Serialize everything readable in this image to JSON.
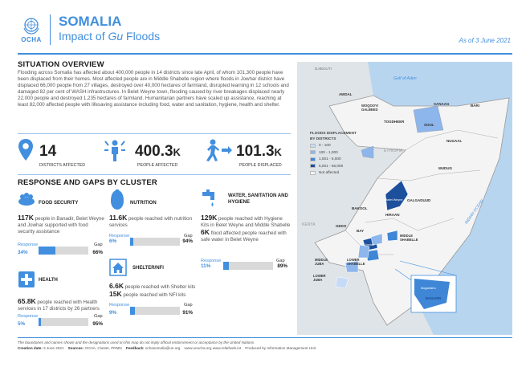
{
  "header": {
    "org": "OCHA",
    "title": "SOMALIA",
    "subtitle_prefix": "Impact of ",
    "subtitle_italic": "Gu",
    "subtitle_suffix": " Floods",
    "as_of": "As of 3 June 2021"
  },
  "overview": {
    "heading": "SITUATION OVERVIEW",
    "text": "Flooding across Somalia has affected about 400,000 people in 14 districts since late April, of whom 101,300 people have been displaced from their homes. Most affected people are in Middle Shabelle region where floods in Jowhar district have displaced 66,000 people from 27 villages, destroyed over 40,000 hectares of farmland, disrupted learning in 12 schools and damaged 82 per cent of WASH infrastructures. In Belet Weyne town, flooding caused by river breakages displaced nearly 22,000 people and destroyed 1,235 hectares of farmland. Humanitarian partners have scaled up assistance, reaching at least 82,000 affected people with lifesaving assistance including food, water and sanitation, hygiene, health and shelter."
  },
  "kpis": [
    {
      "icon": "location-pin-icon",
      "value": "14",
      "unit": "",
      "label": "DISTRICTS AFFECTED"
    },
    {
      "icon": "people-affected-icon",
      "value": "400.3",
      "unit": "K",
      "label": "PEOPLE AFFECTED"
    },
    {
      "icon": "people-displaced-icon",
      "value": "101.3",
      "unit": "K",
      "label": "PEOPLE DISPLACED"
    }
  ],
  "response": {
    "heading": "RESPONSE AND GAPS BY CLUSTER",
    "response_label": "Response",
    "gap_label": "Gap",
    "clusters": [
      {
        "key": "food",
        "title": "FOOD SECURITY",
        "num": "117K",
        "text": " people in Banadir, Belet Weyne and Jowhar supported with food security assistance",
        "response_pct": 34,
        "gap_pct": 66,
        "response_text": "34%",
        "gap_text": "66%"
      },
      {
        "key": "nutrition",
        "title": "NUTRITION",
        "num": "11.6K",
        "text": " people reached with nutrition services",
        "response_pct": 6,
        "gap_pct": 94,
        "response_text": "6%",
        "gap_text": "94%"
      },
      {
        "key": "wash",
        "title": "WATER, SANITATION AND HYGIENE",
        "num": "129K",
        "text": " people reached with Hygiene Kits in Belet Weyne and Middle Shabelle",
        "num2": "6K",
        "text2": " flood affected people reached with safe water in Belet Weyne",
        "response_pct": 11,
        "gap_pct": 89,
        "response_text": "11%",
        "gap_text": "89%"
      },
      {
        "key": "shelter",
        "title": "SHELTER/NFI",
        "num": "6.6K",
        "text": " people reached with Shelter kits",
        "num2": "15K",
        "text2": " people reached with NFI kits",
        "response_pct": 9,
        "gap_pct": 91,
        "response_text": "9%",
        "gap_text": "91%"
      },
      {
        "key": "health",
        "title": "HEALTH",
        "num": "65.8K",
        "text": " people reached with Health services in 17 districts by 26 partners",
        "response_pct": 5,
        "gap_pct": 95,
        "response_text": "5%",
        "gap_text": "95%"
      }
    ]
  },
  "map": {
    "labels": {
      "djibouti": "DJIBOUTI",
      "gulf": "Gulf of Aden",
      "awdal": "AWDAL",
      "woqooyi": "WOQOOYI GALBEED",
      "sanaag": "SANAAG",
      "bari": "BARI",
      "togdheer": "TOGDHEER",
      "sool": "SOOL",
      "nugaal": "NUGAAL",
      "ethiopia": "ETHIOPIA",
      "mudug": "MUDUG",
      "galgaduud": "GALGADUUD",
      "bakool": "BAKOOL",
      "hiraan": "HIRAAN",
      "beletweyne": "Belet Weyne",
      "gedo": "GEDO",
      "bay": "BAY",
      "jowhar": "Jowhar",
      "middle_shabelle": "MIDDLE SHABELLE",
      "lower_shabelle": "LOWER SHABELLE",
      "middle_juba": "MIDDLE JUBA",
      "lower_juba": "LOWER JUBA",
      "kenya": "KENYA",
      "banadir": "BANADIR",
      "mogadishu": "Mogadishu",
      "indian_ocean": "INDIAN OCEAN"
    },
    "legend": {
      "title": "FLOODS DISPLACEMENT BY DISTRICTS",
      "items": [
        {
          "label": "0 - 100",
          "color": "#c6dbf7"
        },
        {
          "label": "100 - 1,000",
          "color": "#8cb6ec"
        },
        {
          "label": "1,001 - 5,000",
          "color": "#3f86d6"
        },
        {
          "label": "5,001 - 66,000",
          "color": "#1c4f9c"
        },
        {
          "label": "Not affected",
          "color": "#f4f4f4"
        }
      ]
    }
  },
  "footer": {
    "disclaimer": "The boundaries and names shown and the designations used on this map do not imply official endorsement or acceptance by the United Nations.",
    "creation_label": "Creation date:",
    "creation_date": "3 June 2021",
    "sources_label": "Sources:",
    "sources": "OCHA, Cluster, PRMN",
    "feedback_label": "Feedback:",
    "feedback": "ochasomalia@un.org",
    "links": "www.unocha.org     www.reliefweb.int",
    "produced": "Produced by Information Management Unit"
  },
  "colors": {
    "accent": "#418fde",
    "gap_bar": "#d9d9d9"
  }
}
